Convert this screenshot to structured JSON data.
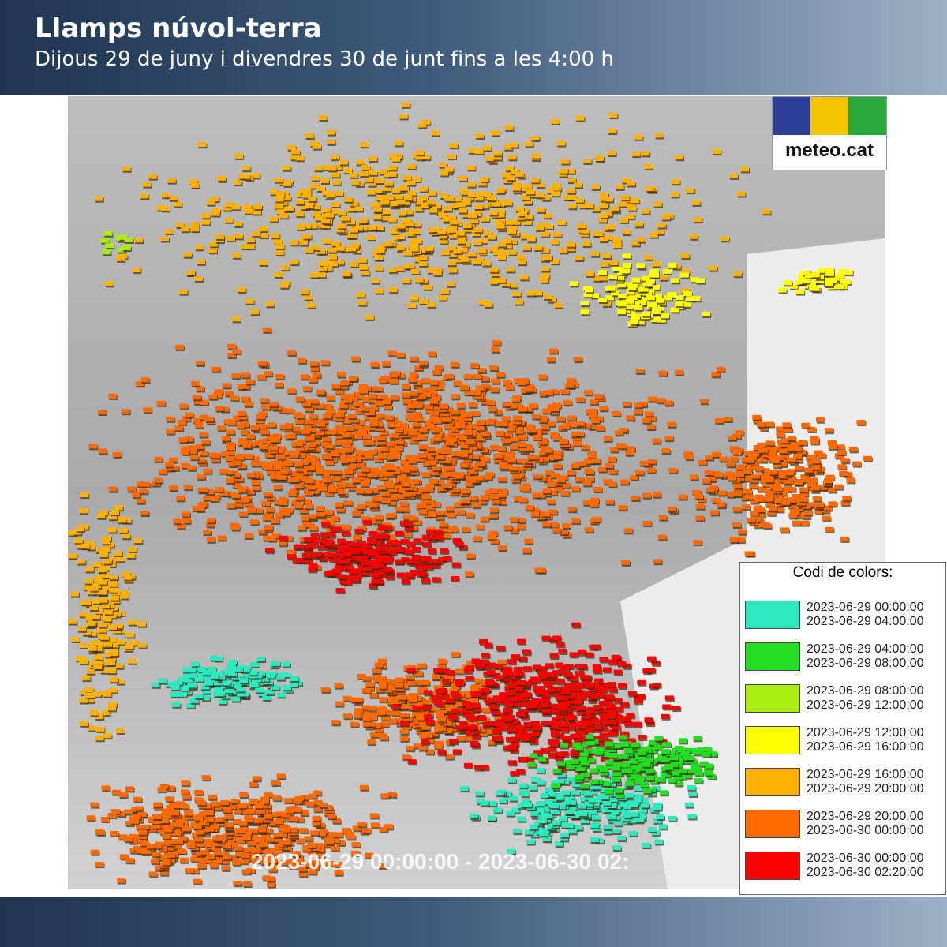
{
  "header": {
    "title": "Llamps núvol-terra",
    "subtitle": "Dijous 29 de juny i divendres 30 de junt fins a les 4:00 h"
  },
  "logo": {
    "text": "meteo.cat"
  },
  "map": {
    "timestamp": "2023-06-29 00:00:00 - 2023-06-30 02:"
  },
  "legend": {
    "title": "Codi de colors:",
    "items": [
      {
        "color": "#2ee8c0",
        "from": "2023-06-29 00:00:00",
        "to": "2023-06-29 04:00:00"
      },
      {
        "color": "#22dd22",
        "from": "2023-06-29 04:00:00",
        "to": "2023-06-29 08:00:00"
      },
      {
        "color": "#aaee11",
        "from": "2023-06-29 08:00:00",
        "to": "2023-06-29 12:00:00"
      },
      {
        "color": "#ffff00",
        "from": "2023-06-29 12:00:00",
        "to": "2023-06-29 16:00:00"
      },
      {
        "color": "#ffb000",
        "from": "2023-06-29 16:00:00",
        "to": "2023-06-29 20:00:00"
      },
      {
        "color": "#ff6a00",
        "from": "2023-06-29 20:00:00",
        "to": "2023-06-30 00:00:00"
      },
      {
        "color": "#ff0000",
        "from": "2023-06-30 00:00:00",
        "to": "2023-06-30 02:20:00"
      }
    ]
  }
}
